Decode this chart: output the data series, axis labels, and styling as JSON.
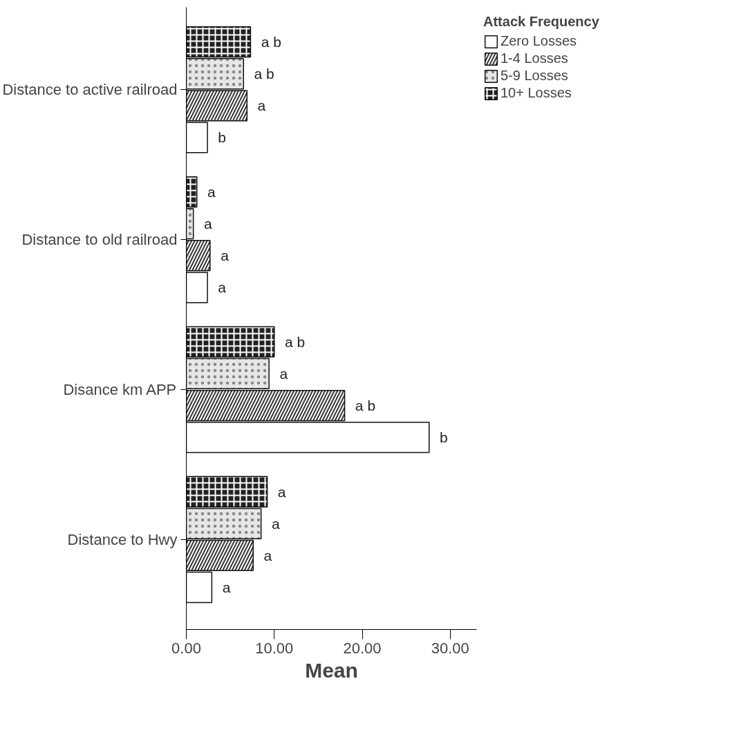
{
  "chart_data": {
    "type": "bar",
    "orientation": "horizontal",
    "categories": [
      "Distance to active railroad",
      "Distance to old railroad",
      "Disance km APP",
      "Distance to Hwy"
    ],
    "series": [
      {
        "name": "Zero Losses",
        "color": "#ffffff",
        "values": [
          2.4,
          2.4,
          27.6,
          2.9
        ],
        "value_labels": [
          "b",
          "a",
          "b",
          "a"
        ]
      },
      {
        "name": "1-4 Losses",
        "color": "#333333",
        "values": [
          6.9,
          2.7,
          18.0,
          7.6
        ],
        "value_labels": [
          "a",
          "a",
          "a b",
          "a"
        ]
      },
      {
        "name": "5-9 Losses",
        "color": "#e6e6e6",
        "values": [
          6.5,
          0.8,
          9.4,
          8.5
        ],
        "value_labels": [
          "a b",
          "a",
          "a",
          "a"
        ]
      },
      {
        "name": "10+ Losses",
        "color": "#222222",
        "values": [
          7.3,
          1.2,
          10.0,
          9.2
        ],
        "value_labels": [
          "a b",
          "a",
          "a b",
          "a"
        ]
      }
    ],
    "xlabel": "Mean",
    "legend_title": "Attack Frequency",
    "xlim": [
      0,
      33
    ],
    "xticks": [
      {
        "value": 0,
        "label": "0.00"
      },
      {
        "value": 10,
        "label": "10.00"
      },
      {
        "value": 20,
        "label": "20.00"
      },
      {
        "value": 30,
        "label": "30.00"
      }
    ],
    "grid": false,
    "legend": "top right"
  }
}
